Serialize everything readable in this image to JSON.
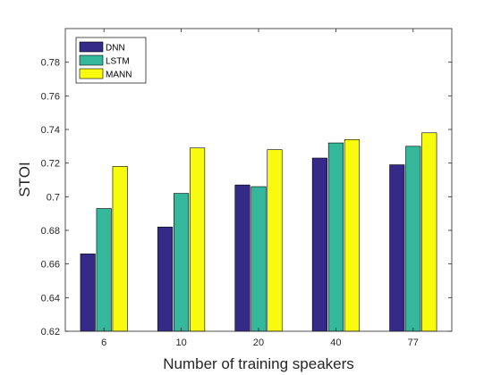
{
  "chart_data": {
    "type": "bar",
    "xlabel": "Number of training speakers",
    "ylabel": "STOI",
    "categories": [
      "6",
      "10",
      "20",
      "40",
      "77"
    ],
    "ylim": [
      0.62,
      0.8
    ],
    "yticks": [
      "0.62",
      "0.64",
      "0.66",
      "0.68",
      "0.7",
      "0.72",
      "0.74",
      "0.76",
      "0.78"
    ],
    "grid": false,
    "legend_position": "top-left",
    "series": [
      {
        "name": "DNN",
        "color": "#352a87",
        "values": [
          0.666,
          0.682,
          0.707,
          0.723,
          0.719
        ]
      },
      {
        "name": "LSTM",
        "color": "#35b79b",
        "values": [
          0.693,
          0.702,
          0.706,
          0.732,
          0.73
        ]
      },
      {
        "name": "MANN",
        "color": "#f9fb0e",
        "values": [
          0.718,
          0.729,
          0.728,
          0.734,
          0.738
        ]
      }
    ]
  }
}
